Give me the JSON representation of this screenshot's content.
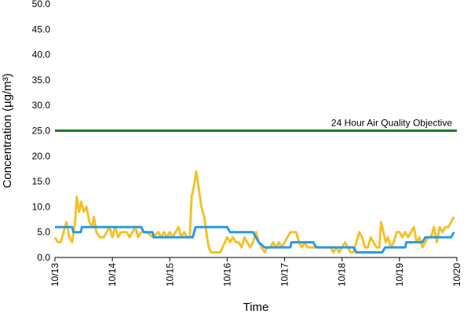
{
  "chart_data": {
    "type": "line",
    "xlabel": "Time",
    "ylabel": "Concentration (µg/m³)",
    "ylim": [
      0,
      50
    ],
    "yticks": [
      "0.0",
      "5.0",
      "10.0",
      "15.0",
      "20.0",
      "25.0",
      "30.0",
      "35.0",
      "40.0",
      "45.0",
      "50.0"
    ],
    "x_tick_labels": [
      "10/13",
      "10/14",
      "10/15",
      "10/16",
      "10/17",
      "10/18",
      "10/19",
      "10/20"
    ],
    "x_range_days": [
      0,
      7
    ],
    "grid": false,
    "objective": {
      "label": "24 Hour Air Quality Objective",
      "value": 25,
      "color": "#1f7a1f"
    },
    "series": [
      {
        "color": "#f2c12e",
        "points": [
          [
            0.0,
            4
          ],
          [
            0.05,
            3
          ],
          [
            0.1,
            3
          ],
          [
            0.15,
            5
          ],
          [
            0.2,
            7
          ],
          [
            0.25,
            4
          ],
          [
            0.3,
            3
          ],
          [
            0.35,
            7
          ],
          [
            0.38,
            12
          ],
          [
            0.42,
            9
          ],
          [
            0.46,
            11
          ],
          [
            0.5,
            9
          ],
          [
            0.55,
            10
          ],
          [
            0.6,
            7
          ],
          [
            0.65,
            6
          ],
          [
            0.68,
            8
          ],
          [
            0.72,
            5
          ],
          [
            0.78,
            4
          ],
          [
            0.85,
            4
          ],
          [
            0.9,
            5
          ],
          [
            0.95,
            6
          ],
          [
            1.0,
            4
          ],
          [
            1.05,
            6
          ],
          [
            1.1,
            4
          ],
          [
            1.15,
            5
          ],
          [
            1.25,
            5
          ],
          [
            1.3,
            4
          ],
          [
            1.35,
            5
          ],
          [
            1.4,
            6
          ],
          [
            1.45,
            4
          ],
          [
            1.5,
            5
          ],
          [
            1.6,
            5
          ],
          [
            1.7,
            4
          ],
          [
            1.8,
            5
          ],
          [
            1.85,
            4
          ],
          [
            1.9,
            5
          ],
          [
            1.95,
            4
          ],
          [
            2.0,
            5
          ],
          [
            2.05,
            4
          ],
          [
            2.1,
            5
          ],
          [
            2.15,
            6
          ],
          [
            2.2,
            4
          ],
          [
            2.25,
            5
          ],
          [
            2.3,
            4
          ],
          [
            2.35,
            4
          ],
          [
            2.38,
            12
          ],
          [
            2.42,
            14
          ],
          [
            2.46,
            17
          ],
          [
            2.5,
            14
          ],
          [
            2.55,
            10
          ],
          [
            2.6,
            8
          ],
          [
            2.65,
            4
          ],
          [
            2.68,
            2
          ],
          [
            2.72,
            1
          ],
          [
            2.8,
            1
          ],
          [
            2.88,
            1
          ],
          [
            2.92,
            2
          ],
          [
            2.96,
            3
          ],
          [
            3.0,
            4
          ],
          [
            3.05,
            3
          ],
          [
            3.1,
            4
          ],
          [
            3.15,
            3
          ],
          [
            3.2,
            3
          ],
          [
            3.25,
            2
          ],
          [
            3.3,
            4
          ],
          [
            3.35,
            3
          ],
          [
            3.4,
            2
          ],
          [
            3.45,
            3
          ],
          [
            3.5,
            5
          ],
          [
            3.55,
            3
          ],
          [
            3.6,
            2
          ],
          [
            3.65,
            1
          ],
          [
            3.7,
            2
          ],
          [
            3.75,
            2
          ],
          [
            3.8,
            3
          ],
          [
            3.85,
            2
          ],
          [
            3.9,
            3
          ],
          [
            3.95,
            2
          ],
          [
            4.0,
            3
          ],
          [
            4.05,
            4
          ],
          [
            4.1,
            5
          ],
          [
            4.15,
            5
          ],
          [
            4.2,
            5
          ],
          [
            4.25,
            3
          ],
          [
            4.3,
            2
          ],
          [
            4.35,
            3
          ],
          [
            4.4,
            2
          ],
          [
            4.45,
            2
          ],
          [
            4.5,
            2
          ],
          [
            4.6,
            2
          ],
          [
            4.7,
            2
          ],
          [
            4.8,
            2
          ],
          [
            4.85,
            1
          ],
          [
            4.9,
            2
          ],
          [
            4.95,
            1
          ],
          [
            5.0,
            2
          ],
          [
            5.05,
            3
          ],
          [
            5.1,
            2
          ],
          [
            5.15,
            1
          ],
          [
            5.2,
            1
          ],
          [
            5.25,
            3
          ],
          [
            5.3,
            5
          ],
          [
            5.35,
            4
          ],
          [
            5.4,
            2
          ],
          [
            5.45,
            2
          ],
          [
            5.5,
            4
          ],
          [
            5.55,
            3
          ],
          [
            5.6,
            2
          ],
          [
            5.65,
            2
          ],
          [
            5.68,
            7
          ],
          [
            5.72,
            5
          ],
          [
            5.76,
            3
          ],
          [
            5.8,
            4
          ],
          [
            5.85,
            2
          ],
          [
            5.9,
            3
          ],
          [
            5.95,
            5
          ],
          [
            6.0,
            5
          ],
          [
            6.05,
            4
          ],
          [
            6.1,
            5
          ],
          [
            6.15,
            4
          ],
          [
            6.2,
            5
          ],
          [
            6.25,
            6
          ],
          [
            6.3,
            3
          ],
          [
            6.35,
            4
          ],
          [
            6.4,
            2
          ],
          [
            6.45,
            3
          ],
          [
            6.5,
            4
          ],
          [
            6.55,
            4
          ],
          [
            6.6,
            6
          ],
          [
            6.65,
            3
          ],
          [
            6.7,
            6
          ],
          [
            6.75,
            5
          ],
          [
            6.8,
            6
          ],
          [
            6.85,
            6
          ],
          [
            6.9,
            7
          ],
          [
            6.95,
            8
          ]
        ]
      },
      {
        "color": "#2b9ae0",
        "points": [
          [
            0.0,
            6
          ],
          [
            0.3,
            6
          ],
          [
            0.32,
            5
          ],
          [
            0.45,
            5
          ],
          [
            0.47,
            6
          ],
          [
            1.2,
            6
          ],
          [
            1.5,
            6
          ],
          [
            1.55,
            5
          ],
          [
            1.7,
            5
          ],
          [
            1.72,
            4
          ],
          [
            2.3,
            4
          ],
          [
            2.4,
            4
          ],
          [
            2.45,
            6
          ],
          [
            2.5,
            6
          ],
          [
            3.0,
            6
          ],
          [
            3.05,
            5
          ],
          [
            3.45,
            5
          ],
          [
            3.5,
            4
          ],
          [
            3.55,
            3
          ],
          [
            3.65,
            2
          ],
          [
            4.1,
            2
          ],
          [
            4.12,
            3
          ],
          [
            4.5,
            3
          ],
          [
            4.55,
            2
          ],
          [
            5.2,
            2
          ],
          [
            5.25,
            1
          ],
          [
            5.7,
            1
          ],
          [
            5.75,
            2
          ],
          [
            6.1,
            2
          ],
          [
            6.12,
            3
          ],
          [
            6.4,
            3
          ],
          [
            6.45,
            4
          ],
          [
            6.9,
            4
          ],
          [
            6.95,
            5
          ]
        ]
      }
    ]
  }
}
